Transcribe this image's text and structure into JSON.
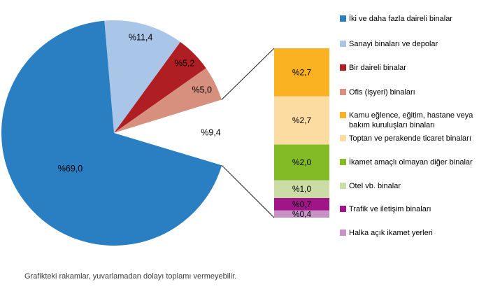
{
  "chart_data": {
    "type": "pie",
    "variant": "bar-of-pie",
    "unit": "percent",
    "legend_position": "right",
    "pie_slices": [
      {
        "label": "İki ve daha fazla daireli binalar",
        "value": 69.0,
        "display": "%69,0",
        "color": "#2A7FC2"
      },
      {
        "label": "Sanayi binaları ve depolar",
        "value": 11.4,
        "display": "%11,4",
        "color": "#A9C5E8"
      },
      {
        "label": "Bir daireli binalar",
        "value": 5.2,
        "display": "%5,2",
        "color": "#AF1E23"
      },
      {
        "label": "Ofis (işyeri) binaları",
        "value": 5.0,
        "display": "%5,0",
        "color": "#D8907E"
      },
      {
        "label": "",
        "value": 9.4,
        "display": "%9,4",
        "color": "#FFFFFF",
        "group_of_bar": true
      }
    ],
    "bar_segments": [
      {
        "label": "Kamu eğlence, eğitim, hastane veya bakım kuruluşları binaları",
        "value": 2.7,
        "display": "%2,7",
        "color": "#FAB122"
      },
      {
        "label": "Toptan ve perakende ticaret binaları",
        "value": 2.7,
        "display": "%2,7",
        "color": "#FDDCA2"
      },
      {
        "label": "İkamet amaçlı olmayan diğer binalar",
        "value": 2.0,
        "display": "%2,0",
        "color": "#83BB26"
      },
      {
        "label": "Otel vb. binalar",
        "value": 1.0,
        "display": "%1,0",
        "color": "#CBDCA4"
      },
      {
        "label": "Trafik ve iletişim binaları",
        "value": 0.7,
        "display": "%0,7",
        "color": "#A01689"
      },
      {
        "label": "Halka açık ikamet yerleri",
        "value": 0.4,
        "display": "%0,4",
        "color": "#C992C6"
      }
    ],
    "footnote": "Grafikteki rakamlar, yuvarlamadan dolayı toplamı vermeyebilir."
  }
}
